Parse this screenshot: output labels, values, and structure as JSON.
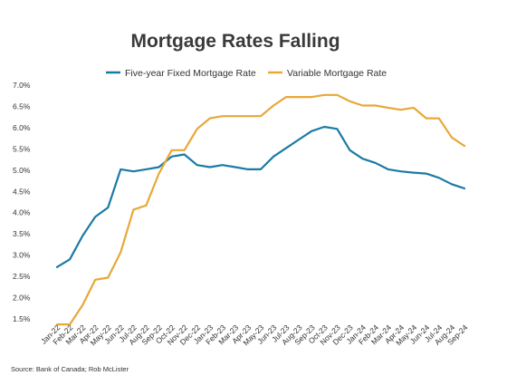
{
  "chart_data": {
    "type": "line",
    "title": "Mortgage Rates Falling",
    "source": "Source: Bank of Canada; Rob McLister",
    "xlabel": "",
    "ylabel": "",
    "ylim": [
      1.5,
      7.0
    ],
    "yticks": [
      "1.5%",
      "2.0%",
      "2.5%",
      "3.0%",
      "3.5%",
      "4.0%",
      "4.5%",
      "5.0%",
      "5.5%",
      "6.0%",
      "6.5%",
      "7.0%"
    ],
    "ytick_values": [
      1.5,
      2.0,
      2.5,
      3.0,
      3.5,
      4.0,
      4.5,
      5.0,
      5.5,
      6.0,
      6.5,
      7.0
    ],
    "grid": false,
    "legend_position": "top",
    "categories": [
      "Jan-22",
      "Feb-22",
      "Mar-22",
      "Apr-22",
      "May-22",
      "Jun-22",
      "Jul-22",
      "Aug-22",
      "Sep-22",
      "Oct-22",
      "Nov-22",
      "Dec-22",
      "Jan-23",
      "Feb-23",
      "Mar-23",
      "Apr-23",
      "May-23",
      "Jun-23",
      "Jul-23",
      "Aug-23",
      "Sep-23",
      "Oct-23",
      "Nov-23",
      "Dec-23",
      "Jan-24",
      "Feb-24",
      "Mar-24",
      "Apr-24",
      "May-24",
      "Jun-24",
      "Jul-24",
      "Aug-24",
      "Sep-24"
    ],
    "series": [
      {
        "name": "Five-year Fixed Mortgage Rate",
        "color": "#1b7aa5",
        "values": [
          2.72,
          2.9,
          3.45,
          3.9,
          4.12,
          5.02,
          4.97,
          5.02,
          5.07,
          5.32,
          5.37,
          5.12,
          5.07,
          5.12,
          5.07,
          5.02,
          5.02,
          5.32,
          5.52,
          5.72,
          5.92,
          6.02,
          5.97,
          5.47,
          5.27,
          5.17,
          5.02,
          4.97,
          4.94,
          4.92,
          4.82,
          4.67,
          4.57
        ]
      },
      {
        "name": "Variable Mortgage Rate",
        "color": "#e8a838",
        "values": [
          1.37,
          1.37,
          1.82,
          2.42,
          2.47,
          3.07,
          4.07,
          4.17,
          4.92,
          5.47,
          5.47,
          5.97,
          6.22,
          6.27,
          6.27,
          6.27,
          6.27,
          6.52,
          6.72,
          6.72,
          6.72,
          6.77,
          6.77,
          6.62,
          6.52,
          6.52,
          6.47,
          6.42,
          6.47,
          6.22,
          6.22,
          5.77,
          5.57
        ]
      }
    ]
  }
}
